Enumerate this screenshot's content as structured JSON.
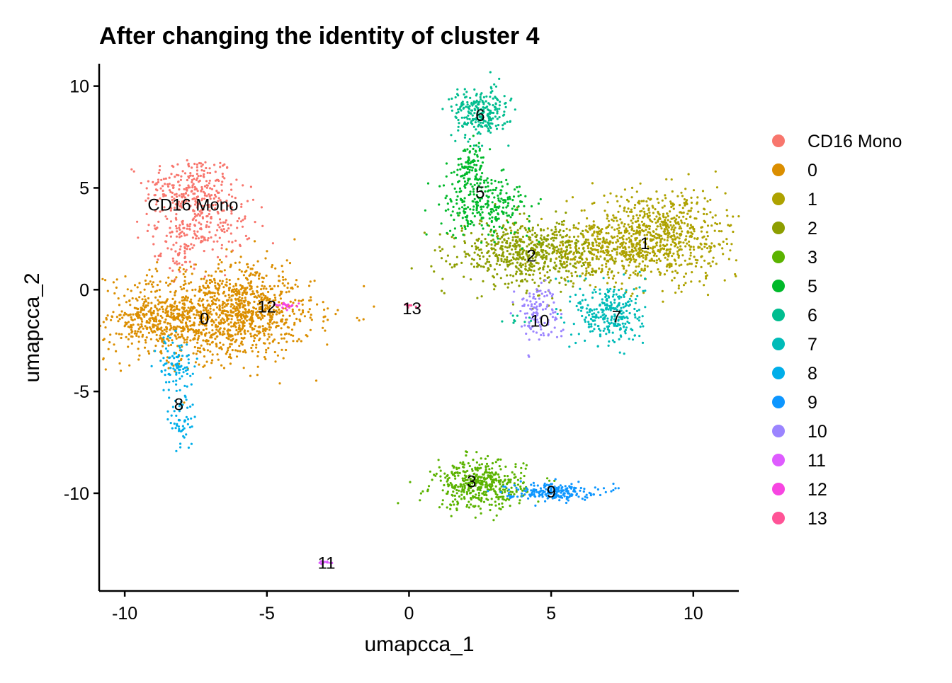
{
  "chart_data": {
    "type": "scatter",
    "title": "After changing the identity of cluster 4",
    "xlabel": "umapcca_1",
    "ylabel": "umapcca_2",
    "xlim": [
      -10.9,
      11.6
    ],
    "ylim": [
      -14.8,
      11.1
    ],
    "x_ticks": [
      -10,
      -5,
      0,
      5,
      10
    ],
    "y_ticks": [
      10,
      5,
      0,
      -5,
      -10
    ],
    "grid": false,
    "legend_position": "right",
    "legend_marker": "circle",
    "clusters": [
      {
        "name": "CD16 Mono",
        "color": "#F8766D",
        "label_at": [
          -7.6,
          4.2
        ],
        "blobs": [
          {
            "c": [
              -7.7,
              5.0
            ],
            "s": [
              0.8,
              0.8
            ],
            "n": 220
          },
          {
            "c": [
              -7.3,
              3.3
            ],
            "s": [
              0.9,
              0.9
            ],
            "n": 200
          },
          {
            "c": [
              -7.9,
              1.9
            ],
            "s": [
              0.4,
              0.6
            ],
            "n": 60
          }
        ]
      },
      {
        "name": "0",
        "color": "#DB8E00",
        "label_at": [
          -7.2,
          -1.4
        ],
        "blobs": [
          {
            "c": [
              -7.0,
              -1.3
            ],
            "s": [
              1.8,
              1.1
            ],
            "n": 1100
          },
          {
            "c": [
              -5.5,
              -0.5
            ],
            "s": [
              0.8,
              1.0
            ],
            "n": 250
          },
          {
            "c": [
              -8.8,
              -1.6
            ],
            "s": [
              0.6,
              0.7
            ],
            "n": 150
          }
        ]
      },
      {
        "name": "1",
        "color": "#AEA200",
        "label_at": [
          8.3,
          2.3
        ],
        "blobs": [
          {
            "c": [
              8.8,
              2.6
            ],
            "s": [
              1.5,
              1.1
            ],
            "n": 800
          },
          {
            "c": [
              6.6,
              1.9
            ],
            "s": [
              1.0,
              0.6
            ],
            "n": 250
          }
        ]
      },
      {
        "name": "2",
        "color": "#8D9E00",
        "label_at": [
          4.3,
          1.7
        ],
        "blobs": [
          {
            "c": [
              4.1,
              1.8
            ],
            "s": [
              1.2,
              0.8
            ],
            "n": 600
          }
        ]
      },
      {
        "name": "3",
        "color": "#5BB300",
        "label_at": [
          2.2,
          -9.4
        ],
        "blobs": [
          {
            "c": [
              2.5,
              -9.6
            ],
            "s": [
              0.8,
              0.6
            ],
            "n": 450
          }
        ]
      },
      {
        "name": "5",
        "color": "#00B92A",
        "label_at": [
          2.5,
          4.8
        ],
        "blobs": [
          {
            "c": [
              2.7,
              4.1
            ],
            "s": [
              0.8,
              0.7
            ],
            "n": 250
          },
          {
            "c": [
              2.2,
              6.0
            ],
            "s": [
              0.3,
              0.6
            ],
            "n": 120
          }
        ]
      },
      {
        "name": "6",
        "color": "#00BD8F",
        "label_at": [
          2.5,
          8.6
        ],
        "blobs": [
          {
            "c": [
              2.5,
              8.7
            ],
            "s": [
              0.5,
              0.6
            ],
            "n": 250
          },
          {
            "c": [
              3.6,
              -1.5
            ],
            "s": [
              0.3,
              0.2
            ],
            "n": 10
          }
        ]
      },
      {
        "name": "7",
        "color": "#00BBB8",
        "label_at": [
          7.3,
          -1.3
        ],
        "blobs": [
          {
            "c": [
              7.1,
              -1.2
            ],
            "s": [
              0.6,
              0.8
            ],
            "n": 280
          }
        ]
      },
      {
        "name": "8",
        "color": "#00AEE9",
        "label_at": [
          -8.1,
          -5.6
        ],
        "blobs": [
          {
            "c": [
              -8.2,
              -3.6
            ],
            "s": [
              0.3,
              0.7
            ],
            "n": 90
          },
          {
            "c": [
              -8.0,
              -6.4
            ],
            "s": [
              0.2,
              0.8
            ],
            "n": 60
          }
        ]
      },
      {
        "name": "9",
        "color": "#0D96FF",
        "label_at": [
          5.0,
          -9.9
        ],
        "blobs": [
          {
            "c": [
              5.0,
              -9.9
            ],
            "s": [
              0.8,
              0.2
            ],
            "n": 200
          }
        ]
      },
      {
        "name": "10",
        "color": "#9B84FF",
        "label_at": [
          4.6,
          -1.5
        ],
        "blobs": [
          {
            "c": [
              4.5,
              -1.1
            ],
            "s": [
              0.4,
              0.7
            ],
            "n": 120
          }
        ]
      },
      {
        "name": "11",
        "color": "#DE5BFF",
        "label_at": [
          -2.9,
          -13.4
        ],
        "blobs": [
          {
            "c": [
              -2.9,
              -13.4
            ],
            "s": [
              0.15,
              0.05
            ],
            "n": 12
          }
        ]
      },
      {
        "name": "12",
        "color": "#F745E1",
        "label_at": [
          -5.0,
          -0.8
        ],
        "blobs": [
          {
            "c": [
              -4.4,
              -0.8
            ],
            "s": [
              0.3,
              0.1
            ],
            "n": 20
          }
        ]
      },
      {
        "name": "13",
        "color": "#FF5396",
        "label_at": [
          0.1,
          -0.9
        ],
        "blobs": [
          {
            "c": [
              0.1,
              -0.8
            ],
            "s": [
              0.15,
              0.06
            ],
            "n": 10
          }
        ]
      }
    ]
  }
}
